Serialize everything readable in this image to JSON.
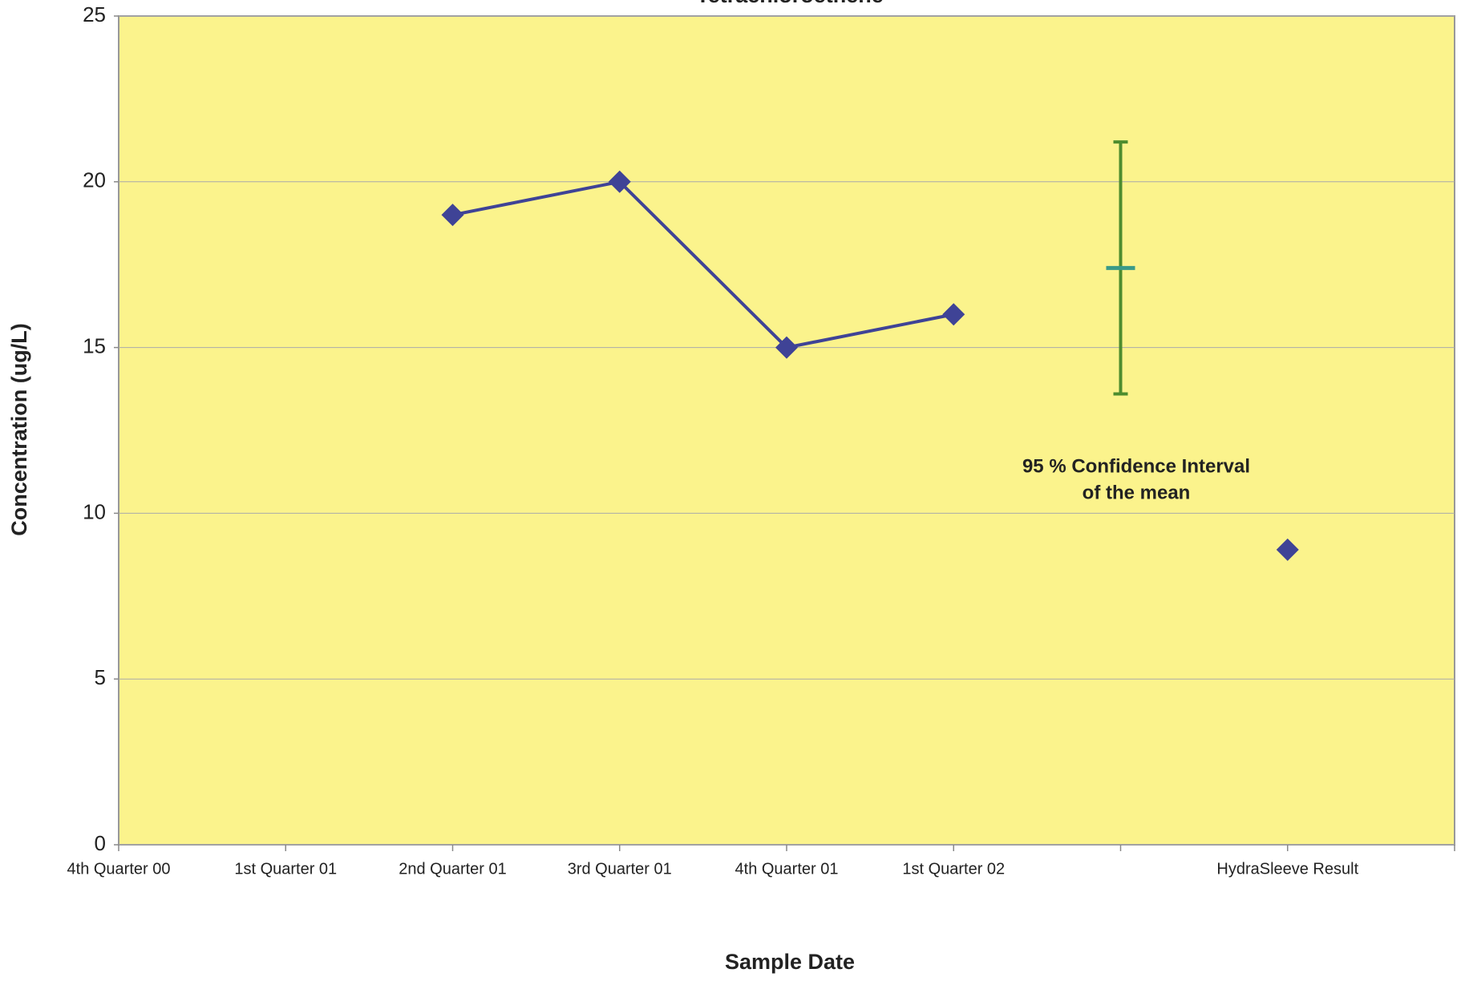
{
  "chart_data": {
    "type": "line",
    "title": "Tetrachloroethene",
    "x_label": "Sample Date",
    "y_label": "Concentration (ug/L)",
    "categories": [
      "4th Quarter 00",
      "1st Quarter 01",
      "2nd Quarter 01",
      "3rd Quarter 01",
      "4th Quarter 01",
      "1st Quarter 02",
      null,
      "HydraSleeve Result",
      null
    ],
    "series": [
      {
        "color": "#3f4396",
        "values": [
          null,
          null,
          19,
          20,
          15,
          16,
          null,
          null,
          null
        ]
      },
      {
        "color": "#4d8c2e",
        "values": [
          null,
          null,
          null,
          null,
          null,
          null,
          17.4,
          null,
          null
        ],
        "errors": [
          null,
          null,
          null,
          null,
          null,
          null,
          3.8,
          null,
          null
        ]
      },
      {
        "color": "#3f4396",
        "values": [
          null,
          null,
          null,
          null,
          null,
          null,
          null,
          8.9,
          null
        ]
      }
    ],
    "annotation_lines": [
      "95 % Confidence Interval",
      "of the mean"
    ],
    "ylim": [
      0,
      25
    ],
    "yticks": [
      0,
      5,
      10,
      15,
      20,
      25
    ],
    "grid": true,
    "plot_color": "#fbf38c"
  }
}
